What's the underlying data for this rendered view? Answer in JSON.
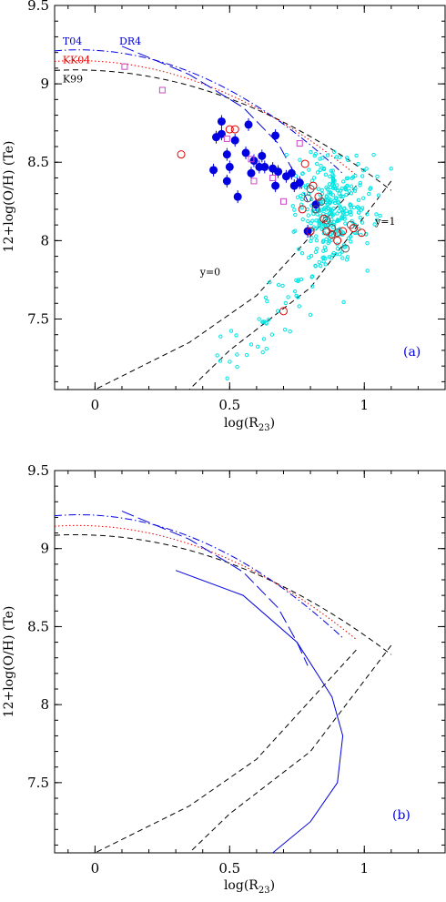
{
  "colors": {
    "cyan": "#00e5e5",
    "blue": "#0000e0",
    "red": "#e00000",
    "magenta": "#cc44cc",
    "black": "#000000"
  },
  "chart_data": [
    {
      "type": "scatter",
      "panel": "(a)",
      "xlabel": "log(R",
      "xlabel_sub": "23",
      "xlabel_tail": ")",
      "ylabel": "12+log(O/H) (Te)",
      "xlim": [
        -0.15,
        1.3
      ],
      "ylim": [
        7.05,
        9.5
      ],
      "xticks": [
        0,
        0.5,
        1
      ],
      "xtick_labels": [
        "0",
        "0.5",
        "1"
      ],
      "yticks": [
        7.5,
        8,
        8.5,
        9,
        9.5
      ],
      "ytick_labels": [
        "7.5",
        "8",
        "8.5",
        "9",
        "9.5"
      ],
      "annotations": [
        {
          "text": "T04",
          "x": -0.12,
          "y": 9.25,
          "color": "#0000e0"
        },
        {
          "text": "DR4",
          "x": 0.09,
          "y": 9.25,
          "color": "#0000e0"
        },
        {
          "text": "KK04",
          "x": -0.12,
          "y": 9.13,
          "color": "#e00000"
        },
        {
          "text": "K99",
          "x": -0.12,
          "y": 9.01,
          "color": "#000000"
        },
        {
          "text": "y=0",
          "x": 0.39,
          "y": 7.78,
          "color": "#000000"
        },
        {
          "text": "y=1",
          "x": 1.04,
          "y": 8.1,
          "color": "#000000"
        }
      ],
      "series": [
        {
          "style": "filled-circle",
          "x": [
            0.44,
            0.45,
            0.47,
            0.47,
            0.49,
            0.49,
            0.5,
            0.52,
            0.53,
            0.56,
            0.57,
            0.58,
            0.59,
            0.61,
            0.62,
            0.63,
            0.66,
            0.67,
            0.67,
            0.68,
            0.71,
            0.73,
            0.74,
            0.76,
            0.79,
            0.82
          ],
          "y": [
            8.45,
            8.66,
            8.76,
            8.68,
            8.38,
            8.55,
            8.47,
            8.64,
            8.28,
            8.56,
            8.74,
            8.43,
            8.51,
            8.47,
            8.54,
            8.47,
            8.46,
            8.35,
            8.67,
            8.44,
            8.41,
            8.43,
            8.35,
            8.37,
            8.06,
            8.23
          ]
        },
        {
          "style": "open-circle-red",
          "x": [
            0.32,
            0.5,
            0.52,
            0.7,
            0.77,
            0.78,
            0.8,
            0.81,
            0.83,
            0.85,
            0.86,
            0.88,
            0.9,
            0.92,
            0.96,
            0.99
          ],
          "y": [
            8.55,
            8.71,
            8.71,
            7.55,
            8.2,
            8.49,
            8.06,
            8.35,
            8.28,
            8.14,
            8.06,
            8.04,
            8.0,
            8.06,
            8.08,
            8.05
          ]
        },
        {
          "style": "open-circle-black",
          "x": [
            0.79,
            0.8,
            0.82,
            0.84,
            0.86,
            0.88,
            0.9,
            0.93,
            0.95
          ],
          "y": [
            8.27,
            8.33,
            8.2,
            8.25,
            8.13,
            8.08,
            8.05,
            7.95,
            8.1
          ]
        },
        {
          "style": "open-square",
          "x": [
            0.11,
            0.25,
            0.49,
            0.58,
            0.59,
            0.66,
            0.7,
            0.76
          ],
          "y": [
            9.11,
            8.96,
            8.65,
            8.52,
            8.38,
            8.4,
            8.25,
            8.62
          ]
        }
      ],
      "curves": [
        {
          "name": "K99",
          "style": "black-dashed"
        },
        {
          "name": "KK04",
          "style": "red-dotted"
        },
        {
          "name": "T04",
          "style": "blue-dashdot"
        },
        {
          "name": "DR4",
          "style": "blue-longdash"
        }
      ],
      "cyan_cloud": {
        "count": 360,
        "x_center": 0.89,
        "y_center": 8.2,
        "x_spread": 0.07,
        "y_spread": 0.17
      }
    },
    {
      "type": "line",
      "panel": "(b)",
      "xlabel": "log(R",
      "xlabel_sub": "23",
      "xlabel_tail": ")",
      "ylabel": "12+log(O/H) (Te)",
      "xlim": [
        -0.15,
        1.3
      ],
      "ylim": [
        7.05,
        9.5
      ],
      "xticks": [
        0,
        0.5,
        1
      ],
      "xtick_labels": [
        "0",
        "0.5",
        "1"
      ],
      "yticks": [
        7.5,
        8,
        8.5,
        9,
        9.5
      ],
      "ytick_labels": [
        "7.5",
        "8",
        "8.5",
        "9",
        "9.5"
      ],
      "curves": [
        {
          "name": "K99",
          "style": "black-dashed"
        },
        {
          "name": "KK04",
          "style": "red-dotted"
        },
        {
          "name": "T04",
          "style": "blue-dashdot"
        },
        {
          "name": "DR4",
          "style": "blue-longdash"
        },
        {
          "name": "",
          "style": "blue-solid"
        }
      ]
    }
  ]
}
